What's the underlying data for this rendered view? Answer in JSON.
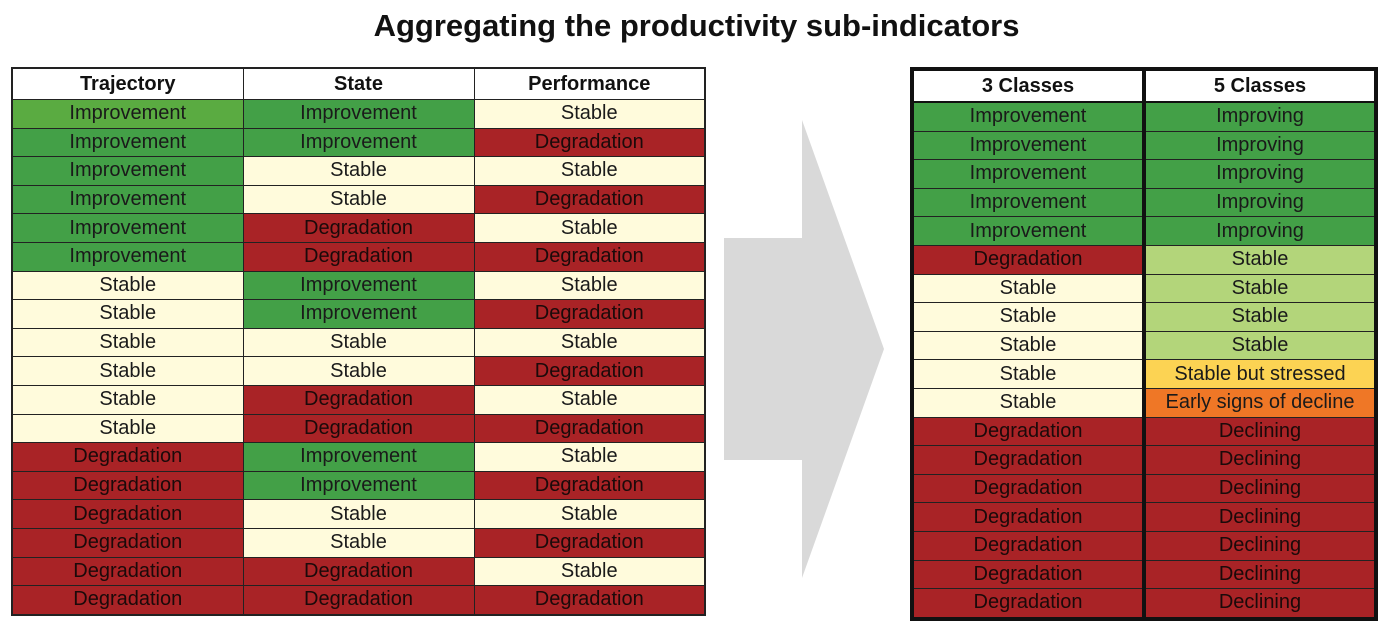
{
  "title": "Aggregating the productivity sub-indicators",
  "left_table": {
    "headers": [
      "Trajectory",
      "State",
      "Performance"
    ],
    "rows": [
      [
        "Improvement",
        "Improvement",
        "Stable"
      ],
      [
        "Improvement",
        "Improvement",
        "Degradation"
      ],
      [
        "Improvement",
        "Stable",
        "Stable"
      ],
      [
        "Improvement",
        "Stable",
        "Degradation"
      ],
      [
        "Improvement",
        "Degradation",
        "Stable"
      ],
      [
        "Improvement",
        "Degradation",
        "Degradation"
      ],
      [
        "Stable",
        "Improvement",
        "Stable"
      ],
      [
        "Stable",
        "Improvement",
        "Degradation"
      ],
      [
        "Stable",
        "Stable",
        "Stable"
      ],
      [
        "Stable",
        "Stable",
        "Degradation"
      ],
      [
        "Stable",
        "Degradation",
        "Stable"
      ],
      [
        "Stable",
        "Degradation",
        "Degradation"
      ],
      [
        "Degradation",
        "Improvement",
        "Stable"
      ],
      [
        "Degradation",
        "Improvement",
        "Degradation"
      ],
      [
        "Degradation",
        "Stable",
        "Stable"
      ],
      [
        "Degradation",
        "Stable",
        "Degradation"
      ],
      [
        "Degradation",
        "Degradation",
        "Stable"
      ],
      [
        "Degradation",
        "Degradation",
        "Degradation"
      ]
    ]
  },
  "right_table": {
    "headers": [
      "3 Classes",
      "5 Classes"
    ],
    "rows": [
      [
        "Improvement",
        "Improving"
      ],
      [
        "Improvement",
        "Improving"
      ],
      [
        "Improvement",
        "Improving"
      ],
      [
        "Improvement",
        "Improving"
      ],
      [
        "Improvement",
        "Improving"
      ],
      [
        "Degradation",
        "Stable"
      ],
      [
        "Stable",
        "Stable"
      ],
      [
        "Stable",
        "Stable"
      ],
      [
        "Stable",
        "Stable"
      ],
      [
        "Stable",
        "Stable but stressed"
      ],
      [
        "Stable",
        "Early signs of decline"
      ],
      [
        "Degradation",
        "Declining"
      ],
      [
        "Degradation",
        "Declining"
      ],
      [
        "Degradation",
        "Declining"
      ],
      [
        "Degradation",
        "Declining"
      ],
      [
        "Degradation",
        "Declining"
      ],
      [
        "Degradation",
        "Declining"
      ],
      [
        "Degradation",
        "Declining"
      ]
    ]
  },
  "colors": {
    "Improvement": "#43a047",
    "Stable": "#fffbdc",
    "Degradation": "#a92326",
    "Improving": "#43a047",
    "Stable (5 classes)": "#b3d57a",
    "Stable but stressed": "#fcd353",
    "Early signs of decline": "#ef7726",
    "Declining": "#a92326",
    "arrow": "#d9d9d9"
  },
  "icons": {
    "arrow": "right-chevron-arrow-icon"
  }
}
